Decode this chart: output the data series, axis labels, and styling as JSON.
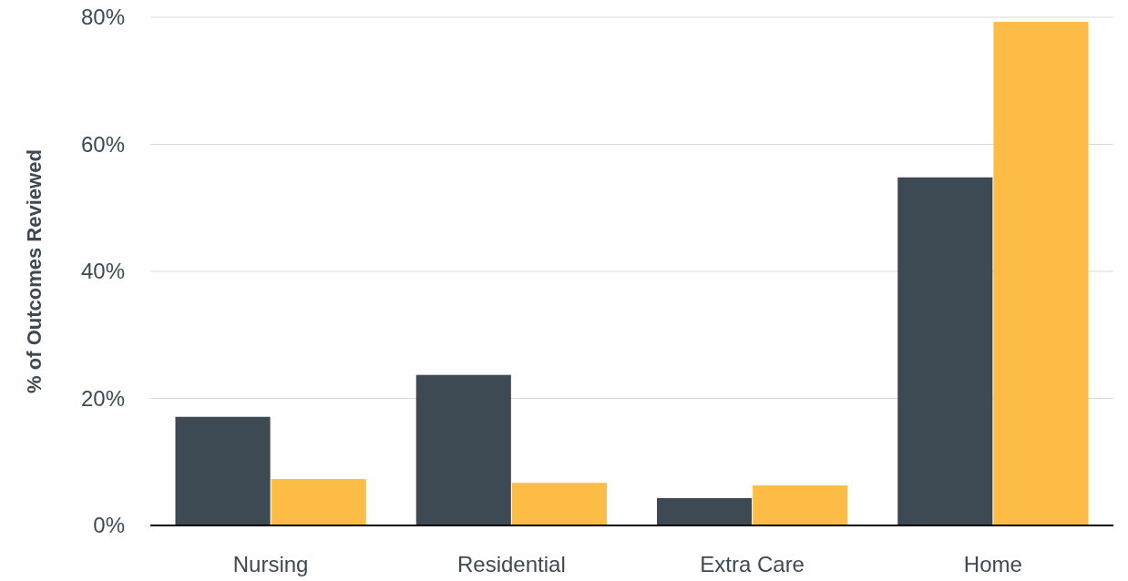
{
  "chart_data": {
    "type": "bar",
    "ylabel": "% of Outcomes Reviewed",
    "categories": [
      "Nursing",
      "Residential",
      "Extra Care",
      "Home"
    ],
    "series": [
      {
        "color": "#3d4a53",
        "values": [
          17.1,
          23.7,
          4.3,
          54.8
        ]
      },
      {
        "color": "#fdbc46",
        "values": [
          7.3,
          6.7,
          6.3,
          79.3
        ]
      }
    ],
    "ylim": [
      0,
      80
    ],
    "yticks": [
      {
        "value": 0,
        "label": "0%"
      },
      {
        "value": 20,
        "label": "20%"
      },
      {
        "value": 40,
        "label": "40%"
      },
      {
        "value": 60,
        "label": "60%"
      },
      {
        "value": 80,
        "label": "80%"
      }
    ],
    "grid": "y"
  }
}
